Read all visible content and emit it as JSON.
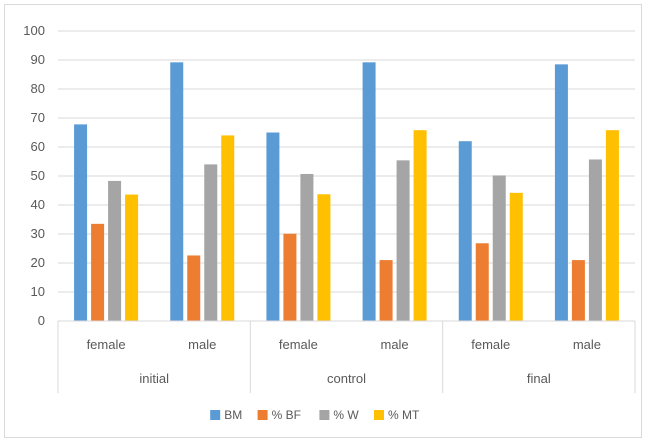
{
  "chart_data": {
    "type": "bar",
    "title": "",
    "xlabel": "",
    "ylabel": "",
    "ylim": [
      0,
      100
    ],
    "yticks": [
      0,
      10,
      20,
      30,
      40,
      50,
      60,
      70,
      80,
      90,
      100
    ],
    "grid": true,
    "legend_position": "bottom",
    "groups": [
      {
        "label": "initial",
        "categories": [
          "female",
          "male"
        ]
      },
      {
        "label": "control",
        "categories": [
          "female",
          "male"
        ]
      },
      {
        "label": "final",
        "categories": [
          "female",
          "male"
        ]
      }
    ],
    "series": [
      {
        "name": "BM",
        "color": "#5b9bd5",
        "values": [
          67.8,
          89.2,
          65.0,
          89.2,
          62.0,
          88.5
        ]
      },
      {
        "name": "% BF",
        "color": "#ed7d31",
        "values": [
          33.5,
          22.6,
          30.1,
          21.0,
          26.8,
          21.0
        ]
      },
      {
        "name": "% W",
        "color": "#a5a5a5",
        "values": [
          48.3,
          54.0,
          50.7,
          55.4,
          50.2,
          55.7
        ]
      },
      {
        "name": "% MT",
        "color": "#ffc000",
        "values": [
          43.6,
          64.0,
          43.7,
          65.8,
          44.2,
          65.8
        ]
      }
    ]
  }
}
